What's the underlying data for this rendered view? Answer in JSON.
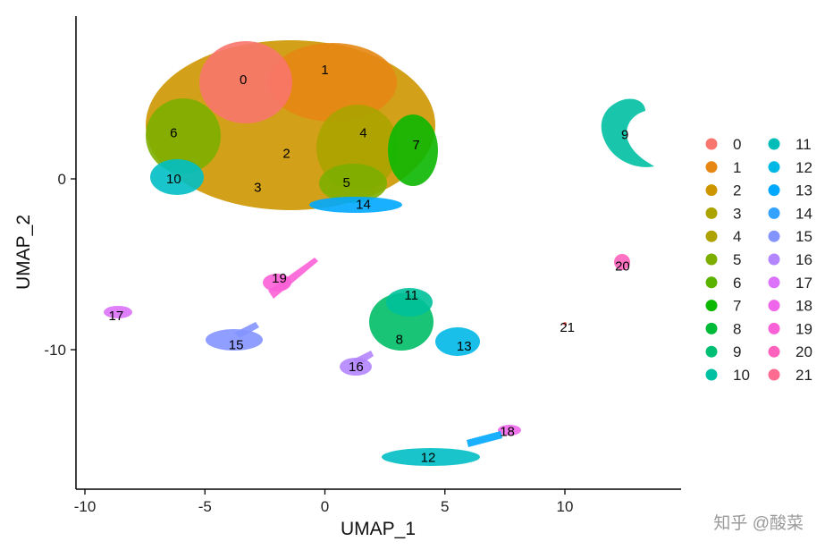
{
  "chart_data": {
    "type": "scatter",
    "title": "",
    "xlabel": "UMAP_1",
    "ylabel": "UMAP_2",
    "xlim": [
      -10.5,
      14.8
    ],
    "ylim": [
      -18.2,
      9.6
    ],
    "xticks": [
      -10,
      -5,
      0,
      5,
      10
    ],
    "yticks": [
      -10,
      0
    ],
    "grid": false,
    "legend_position": "right",
    "clusters": [
      {
        "name": "0",
        "color": "#F8766D",
        "label_x": -3.4,
        "label_y": 5.8
      },
      {
        "name": "1",
        "color": "#E68613",
        "label_x": 0.0,
        "label_y": 6.4
      },
      {
        "name": "2",
        "color": "#CD9600",
        "label_x": -1.6,
        "label_y": 1.5
      },
      {
        "name": "3",
        "color": "#ABA300",
        "label_x": -2.8,
        "label_y": -0.5
      },
      {
        "name": "4",
        "color": "#7CAE00",
        "label_x": 1.6,
        "label_y": 2.7
      },
      {
        "name": "5",
        "color": "#0CB702",
        "label_x": 0.9,
        "label_y": -0.2
      },
      {
        "name": "6",
        "color": "#00BE67",
        "label_x": -6.3,
        "label_y": 2.7
      },
      {
        "name": "7",
        "color": "#00C19A",
        "label_x": 3.8,
        "label_y": 2.0
      },
      {
        "name": "8",
        "color": "#00BFC4",
        "label_x": 3.1,
        "label_y": -9.4
      },
      {
        "name": "9",
        "color": "#00B8E7",
        "label_x": 12.5,
        "label_y": 2.6
      },
      {
        "name": "10",
        "color": "#00A9FF",
        "label_x": -6.3,
        "label_y": 0.0
      },
      {
        "name": "11",
        "color": "#8494FF",
        "label_x": 3.6,
        "label_y": -6.8
      },
      {
        "name": "12",
        "color": "#C77CFF",
        "label_x": 4.3,
        "label_y": -16.3
      },
      {
        "name": "13",
        "color": "#ED68ED",
        "label_x": 5.8,
        "label_y": -9.8
      },
      {
        "name": "14",
        "color": "#FF61CC",
        "label_x": 1.6,
        "label_y": -1.5
      },
      {
        "name": "15",
        "color": "#FF68A1",
        "label_x": -3.7,
        "label_y": -9.7
      },
      {
        "name": "16",
        "color": "#F8766D",
        "label_x": 1.3,
        "label_y": -11.0
      },
      {
        "name": "17",
        "color": "#E68613",
        "label_x": -8.7,
        "label_y": -8.0
      },
      {
        "name": "18",
        "color": "#CD9600",
        "label_x": 7.6,
        "label_y": -14.8
      },
      {
        "name": "19",
        "color": "#ABA300",
        "label_x": -1.9,
        "label_y": -5.8
      },
      {
        "name": "20",
        "color": "#7CAE00",
        "label_x": 12.4,
        "label_y": -5.1
      },
      {
        "name": "21",
        "color": "#0CB702",
        "label_x": 10.1,
        "label_y": -8.7
      }
    ],
    "legend_colors": [
      "#F8766D",
      "#E68613",
      "#CD9600",
      "#ABA300",
      "#AEA200",
      "#7CAE00",
      "#5BB300",
      "#0CB702",
      "#00BA38",
      "#00BF74",
      "#00C0A2",
      "#00BDB8",
      "#00B8E5",
      "#00A9FF",
      "#35A2FF",
      "#8494FF",
      "#B385FF",
      "#DC71FA",
      "#F066EA",
      "#FB61D7",
      "#FF62BC",
      "#FF6C91"
    ]
  },
  "watermark": "知乎 @酸菜"
}
